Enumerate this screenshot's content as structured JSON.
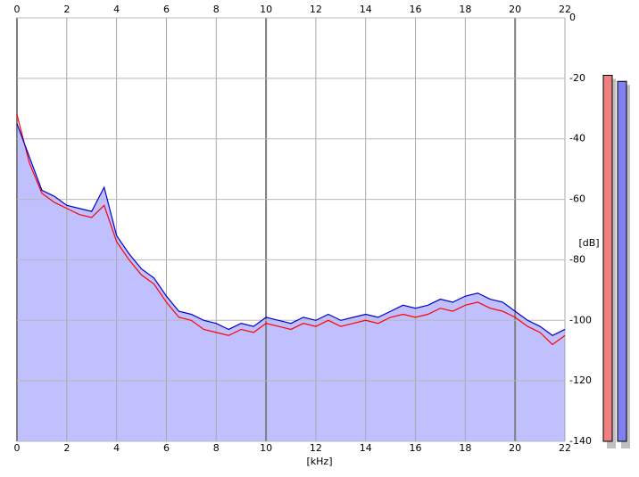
{
  "chart_data": {
    "type": "line",
    "x_label": "[kHz]",
    "y_label": "[dB]",
    "xlim": [
      0,
      22
    ],
    "xticks": [
      0,
      2,
      4,
      6,
      8,
      10,
      12,
      14,
      16,
      18,
      20,
      22
    ],
    "ylim": [
      -140,
      0
    ],
    "yticks": [
      0,
      -20,
      -40,
      -60,
      -80,
      -100,
      -120,
      -140
    ],
    "grid": true,
    "area_color": "#c0c0ff",
    "x": [
      0,
      0.5,
      1,
      1.5,
      2,
      2.5,
      3,
      3.5,
      4,
      4.5,
      5,
      5.5,
      6,
      6.5,
      7,
      7.5,
      8,
      8.5,
      9,
      9.5,
      10,
      10.5,
      11,
      11.5,
      12,
      12.5,
      13,
      13.5,
      14,
      14.5,
      15,
      15.5,
      16,
      16.5,
      17,
      17.5,
      18,
      18.5,
      19,
      19.5,
      20,
      20.5,
      21,
      21.5,
      22
    ],
    "series": [
      {
        "color": "#ff0000",
        "values": [
          -32,
          -48,
          -58,
          -61,
          -63,
          -65,
          -66,
          -62,
          -74,
          -80,
          -85,
          -88,
          -94,
          -99,
          -100,
          -103,
          -104,
          -105,
          -103,
          -104,
          -101,
          -102,
          -103,
          -101,
          -102,
          -100,
          -102,
          -101,
          -100,
          -101,
          -99,
          -98,
          -99,
          -98,
          -96,
          -97,
          -95,
          -94,
          -96,
          -97,
          -99,
          -102,
          -104,
          -108,
          -105
        ]
      },
      {
        "color": "#0000cc",
        "values": [
          -35,
          -46,
          -57,
          -59,
          -62,
          -63,
          -64,
          -56,
          -72,
          -78,
          -83,
          -86,
          -92,
          -97,
          -98,
          -100,
          -101,
          -103,
          -101,
          -102,
          -99,
          -100,
          -101,
          -99,
          -100,
          -98,
          -100,
          -99,
          -98,
          -99,
          -97,
          -95,
          -96,
          -95,
          -93,
          -94,
          -92,
          -91,
          -93,
          -94,
          -97,
          -100,
          -102,
          -105,
          -103
        ]
      }
    ],
    "meters": [
      {
        "color": "#f08080",
        "value": -19
      },
      {
        "color": "#8080f0",
        "value": -21
      }
    ]
  }
}
